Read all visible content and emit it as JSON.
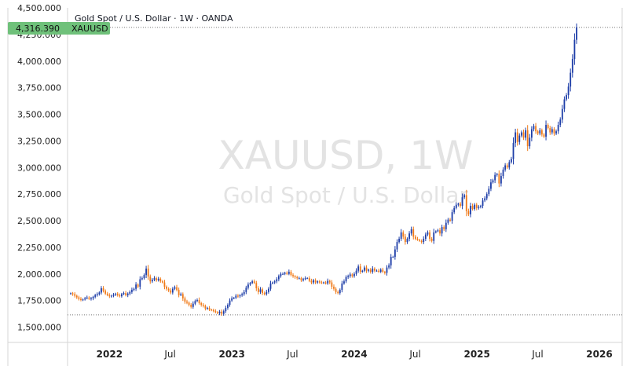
{
  "header": {
    "title": "Gold Spot / U.S. Dollar · 1W · OANDA"
  },
  "watermark": {
    "line1": "XAUUSD, 1W",
    "line2": "Gold Spot / U.S. Dollar"
  },
  "price_tag": {
    "value": "4,316.390",
    "symbol": "XAUUSD",
    "color": "#6fc17a"
  },
  "colors": {
    "up": "#1e3ea8",
    "down": "#f07a18",
    "grid": "#cccccc",
    "axis": "#888888"
  },
  "chart_data": {
    "type": "candlestick",
    "symbol": "XAUUSD",
    "interval": "1W",
    "source": "OANDA",
    "last_price": 4316.39,
    "y_ticks": [
      "4,500.000",
      "4,250.000",
      "4,000.000",
      "3,750.000",
      "3,500.000",
      "3,250.000",
      "3,000.000",
      "2,750.000",
      "2,500.000",
      "2,250.000",
      "2,000.000",
      "1,750.000",
      "1,500.000"
    ],
    "ylim": [
      1500,
      4500
    ],
    "x_ticks": [
      {
        "label": "2022",
        "date": "2022-01-01",
        "bold": true
      },
      {
        "label": "Jul",
        "date": "2022-07-01",
        "bold": false
      },
      {
        "label": "2023",
        "date": "2023-01-01",
        "bold": true
      },
      {
        "label": "Jul",
        "date": "2023-07-01",
        "bold": false
      },
      {
        "label": "2024",
        "date": "2024-01-01",
        "bold": true
      },
      {
        "label": "Jul",
        "date": "2024-07-01",
        "bold": false
      },
      {
        "label": "2025",
        "date": "2025-01-01",
        "bold": true
      },
      {
        "label": "Jul",
        "date": "2025-07-01",
        "bold": false
      },
      {
        "label": "2026",
        "date": "2026-01-01",
        "bold": true
      }
    ],
    "xlim": [
      "2021-08-29",
      "2026-03-10"
    ],
    "reference_lines": [
      4316.39,
      1615
    ],
    "closes": [
      1818,
      1810,
      1795,
      1780,
      1765,
      1755,
      1760,
      1770,
      1778,
      1765,
      1770,
      1785,
      1800,
      1810,
      1825,
      1865,
      1840,
      1815,
      1800,
      1790,
      1795,
      1805,
      1815,
      1800,
      1790,
      1810,
      1820,
      1800,
      1815,
      1830,
      1850,
      1860,
      1900,
      1880,
      1950,
      1960,
      1990,
      2050,
      1975,
      1930,
      1945,
      1960,
      1940,
      1955,
      1930,
      1920,
      1880,
      1860,
      1845,
      1825,
      1860,
      1875,
      1850,
      1800,
      1810,
      1770,
      1740,
      1730,
      1710,
      1690,
      1720,
      1745,
      1755,
      1725,
      1710,
      1700,
      1675,
      1680,
      1665,
      1660,
      1650,
      1640,
      1630,
      1645,
      1625,
      1650,
      1680,
      1710,
      1750,
      1770,
      1775,
      1795,
      1790,
      1800,
      1810,
      1830,
      1870,
      1900,
      1915,
      1930,
      1915,
      1865,
      1830,
      1855,
      1820,
      1810,
      1830,
      1860,
      1910,
      1920,
      1930,
      1950,
      1980,
      2000,
      2000,
      2010,
      2000,
      2020,
      1990,
      1980,
      1970,
      1960,
      1960,
      1940,
      1950,
      1960,
      1960,
      1935,
      1920,
      1940,
      1920,
      1930,
      1920,
      1915,
      1920,
      1910,
      1935,
      1920,
      1880,
      1860,
      1830,
      1820,
      1850,
      1910,
      1930,
      1970,
      1980,
      1995,
      1980,
      2000,
      2030,
      2070,
      2020,
      2030,
      2060,
      2030,
      2040,
      2020,
      2050,
      2030,
      2030,
      2020,
      2040,
      2020,
      2010,
      2060,
      2080,
      2160,
      2160,
      2230,
      2300,
      2330,
      2390,
      2350,
      2300,
      2330,
      2380,
      2420,
      2350,
      2330,
      2320,
      2310,
      2300,
      2330,
      2370,
      2390,
      2330,
      2310,
      2390,
      2400,
      2410,
      2380,
      2440,
      2420,
      2480,
      2510,
      2500,
      2580,
      2620,
      2650,
      2660,
      2640,
      2720,
      2740,
      2590,
      2560,
      2640,
      2610,
      2650,
      2620,
      2630,
      2640,
      2690,
      2710,
      2750,
      2800,
      2860,
      2880,
      2930,
      2940,
      2850,
      2920,
      2980,
      3020,
      3000,
      3050,
      3080,
      3230,
      3330,
      3240,
      3300,
      3330,
      3280,
      3350,
      3200,
      3280,
      3360,
      3390,
      3340,
      3320,
      3350,
      3310,
      3290,
      3400,
      3370,
      3330,
      3360,
      3320,
      3340,
      3400,
      3450,
      3550,
      3640,
      3680,
      3760,
      3890,
      4020,
      4200,
      4316
    ]
  }
}
